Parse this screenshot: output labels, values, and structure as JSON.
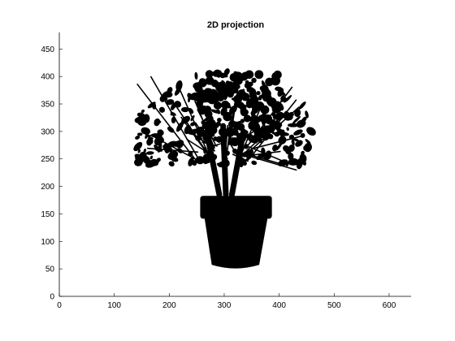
{
  "chart_data": {
    "type": "scatter",
    "title": "2D projection",
    "xlabel": "",
    "ylabel": "",
    "xlim": [
      0,
      640
    ],
    "ylim": [
      0,
      480
    ],
    "xticks": [
      0,
      100,
      200,
      300,
      400,
      500,
      600
    ],
    "yticks": [
      0,
      50,
      100,
      150,
      200,
      250,
      300,
      350,
      400,
      450
    ],
    "grid": false,
    "legend": "none",
    "mark_color": "#000000",
    "series": [
      {
        "content": "filled silhouette of a potted plant",
        "pot": {
          "rim": {
            "x": [
              257,
              386
            ],
            "y": [
              142,
              182
            ]
          },
          "body": {
            "bottom_x": [
              278,
              363
            ],
            "top_x": [
              265,
              378
            ],
            "y": [
              54,
              142
            ]
          }
        },
        "stems": [
          {
            "x": [
              291,
              270
            ],
            "y": [
              185,
              290
            ]
          },
          {
            "x": [
              303,
              298
            ],
            "y": [
              185,
              310
            ]
          },
          {
            "x": [
              314,
              335
            ],
            "y": [
              185,
              300
            ]
          }
        ],
        "leaf_extent": {
          "x": [
            142,
            460
          ],
          "y": [
            210,
            410
          ]
        }
      }
    ]
  }
}
